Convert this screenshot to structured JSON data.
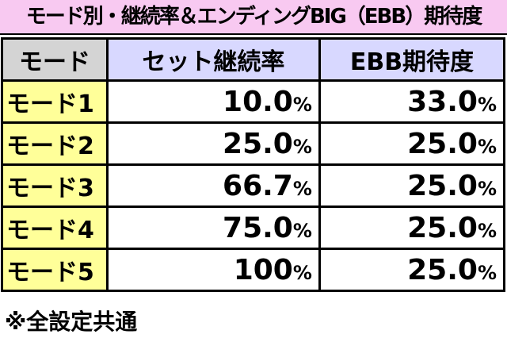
{
  "header": {
    "title": "モード別・継続率＆エンディングBIG（EBB）期待度"
  },
  "table": {
    "columns": [
      "モード",
      "セット継続率",
      "EBB期待度"
    ],
    "rows": [
      [
        "モード1",
        "10.0%",
        "33.0%"
      ],
      [
        "モード2",
        "25.0%",
        "25.0%"
      ],
      [
        "モード3",
        "66.7%",
        "25.0%"
      ],
      [
        "モード4",
        "75.0%",
        "25.0%"
      ],
      [
        "モード5",
        "100%",
        "25.0%"
      ]
    ]
  },
  "footer": {
    "note": "※全設定共通"
  }
}
